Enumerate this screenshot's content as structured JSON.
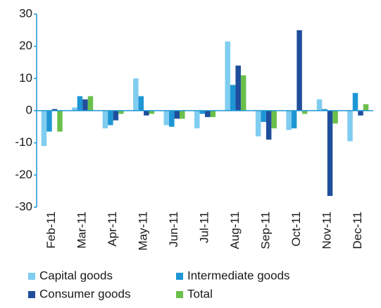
{
  "chart_data": {
    "type": "bar",
    "categories": [
      "Feb-11",
      "Mar-11",
      "Apr-11",
      "May-11",
      "Jun-11",
      "Jul-11",
      "Aug-11",
      "Sep-11",
      "Oct-11",
      "Nov-11",
      "Dec-11"
    ],
    "series": [
      {
        "name": "Capital goods",
        "color": "#7fcdf0",
        "values": [
          -11,
          1,
          -5.5,
          10,
          -4.5,
          -5.5,
          21.5,
          -8,
          -6,
          3.5,
          -9.5
        ]
      },
      {
        "name": "Intermediate goods",
        "color": "#1e96d4",
        "values": [
          -6.5,
          4.5,
          -4.5,
          4.5,
          -5,
          -1,
          8,
          -3.5,
          -5.5,
          0.5,
          5.5
        ]
      },
      {
        "name": "Consumer goods",
        "color": "#1f4e9c",
        "values": [
          0.5,
          3.5,
          -3,
          -1.5,
          -2.5,
          -2,
          14,
          -9,
          25,
          -26.5,
          -1.5
        ]
      },
      {
        "name": "Total",
        "color": "#6abf4b",
        "values": [
          -6.5,
          4.5,
          -1,
          -1,
          -2.5,
          -2,
          11,
          -5.5,
          -1,
          -4,
          2
        ]
      }
    ],
    "ylim": [
      -30,
      30
    ],
    "yticks": [
      -30,
      -20,
      -10,
      0,
      10,
      20,
      30
    ],
    "grid": false,
    "legend": "bottom"
  }
}
